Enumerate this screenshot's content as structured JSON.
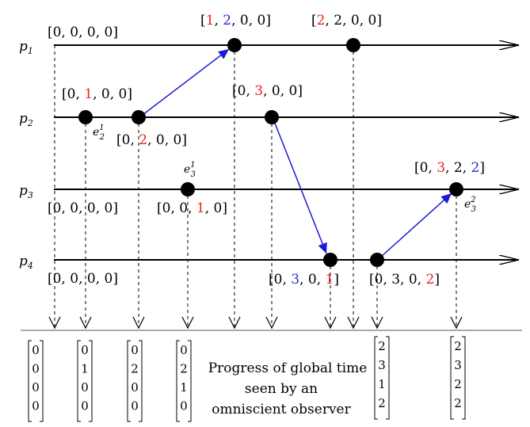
{
  "colors": {
    "red": "#e8211f",
    "blue": "#2b2bd6",
    "black": "#000000",
    "arrow": "#1a1ad6"
  },
  "processes": [
    {
      "id": "p1",
      "name": "p",
      "sub": "1"
    },
    {
      "id": "p2",
      "name": "p",
      "sub": "2"
    },
    {
      "id": "p3",
      "name": "p",
      "sub": "3"
    },
    {
      "id": "p4",
      "name": "p",
      "sub": "4"
    }
  ],
  "vectors": [
    {
      "id": "p1-init",
      "parts": [
        "[0, 0, 0, 0]"
      ],
      "colors": [
        "black"
      ]
    },
    {
      "id": "p1-recv",
      "parts": [
        "[",
        "1",
        ", ",
        "2",
        ", 0, 0]"
      ],
      "colors": [
        "black",
        "red",
        "black",
        "blue",
        "black"
      ]
    },
    {
      "id": "p1-local",
      "parts": [
        "[",
        "2",
        ", 2, 0, 0]"
      ],
      "colors": [
        "black",
        "red",
        "black"
      ]
    },
    {
      "id": "p2-e21",
      "parts": [
        "[0, ",
        "1",
        ", 0, 0]"
      ],
      "colors": [
        "black",
        "red",
        "black"
      ]
    },
    {
      "id": "p2-send",
      "parts": [
        "[0, ",
        "2",
        ", 0, 0]"
      ],
      "colors": [
        "black",
        "red",
        "black"
      ]
    },
    {
      "id": "p2-send2",
      "parts": [
        "[0, ",
        "3",
        ", 0, 0]"
      ],
      "colors": [
        "black",
        "red",
        "black"
      ]
    },
    {
      "id": "p3-init",
      "parts": [
        "[0, 0, 0, 0]"
      ],
      "colors": [
        "black"
      ]
    },
    {
      "id": "p3-e31",
      "parts": [
        "[0, 0, ",
        "1",
        ", 0]"
      ],
      "colors": [
        "black",
        "red",
        "black"
      ]
    },
    {
      "id": "p3-e32",
      "parts": [
        "[0, ",
        "3",
        ", 2, ",
        "2",
        "]"
      ],
      "colors": [
        "black",
        "red",
        "black",
        "blue",
        "black"
      ]
    },
    {
      "id": "p4-init",
      "parts": [
        "[0, 0, 0, 0]"
      ],
      "colors": [
        "black"
      ]
    },
    {
      "id": "p4-recv",
      "parts": [
        "[0, ",
        "3",
        ", 0, ",
        "1",
        "]"
      ],
      "colors": [
        "black",
        "blue",
        "black",
        "red",
        "black"
      ]
    },
    {
      "id": "p4-send",
      "parts": [
        "[0, 3, 0, ",
        "2",
        "]"
      ],
      "colors": [
        "black",
        "red",
        "black"
      ]
    }
  ],
  "event_labels": [
    {
      "id": "e21",
      "name": "e",
      "sub": "2",
      "sup": "1"
    },
    {
      "id": "e31",
      "name": "e",
      "sub": "3",
      "sup": "1"
    },
    {
      "id": "e32",
      "name": "e",
      "sub": "3",
      "sup": "2"
    }
  ],
  "observer_columns": [
    [
      "0",
      "0",
      "0",
      "0"
    ],
    [
      "0",
      "1",
      "0",
      "0"
    ],
    [
      "0",
      "2",
      "0",
      "0"
    ],
    [
      "0",
      "2",
      "1",
      "0"
    ],
    [
      "2",
      "3",
      "1",
      "2"
    ],
    [
      "2",
      "3",
      "2",
      "2"
    ]
  ],
  "caption": [
    "Progress of global time",
    "seen by an",
    "omniscient observer"
  ]
}
